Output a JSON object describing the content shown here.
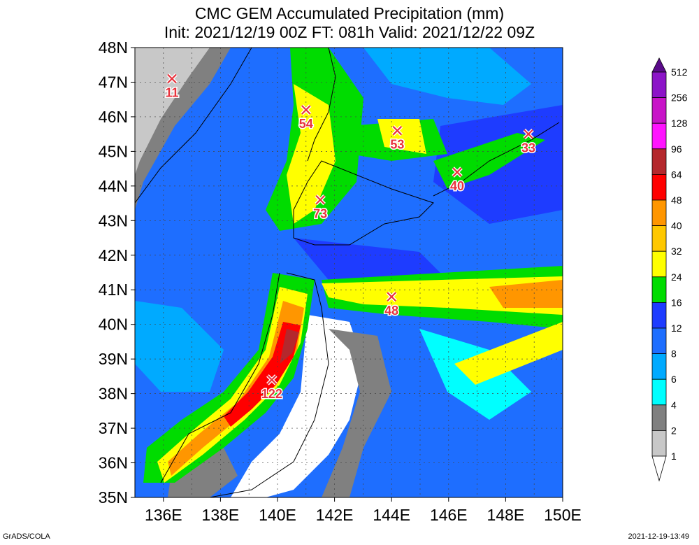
{
  "title": {
    "line1": "CMC GEM Accumulated Precipitation (mm)",
    "line2": "Init: 2021/12/19 00Z  FT: 081h  Valid: 2021/12/22 09Z"
  },
  "axes": {
    "lat_labels": [
      "48N",
      "47N",
      "46N",
      "45N",
      "44N",
      "43N",
      "42N",
      "41N",
      "40N",
      "39N",
      "38N",
      "37N",
      "36N",
      "35N"
    ],
    "lon_labels": [
      "136E",
      "138E",
      "140E",
      "142E",
      "144E",
      "146E",
      "148E",
      "150E"
    ]
  },
  "colorbar": {
    "levels": [
      "512",
      "256",
      "128",
      "96",
      "64",
      "48",
      "40",
      "32",
      "24",
      "16",
      "12",
      "8",
      "6",
      "4",
      "2",
      "1"
    ],
    "colors": [
      "#5a0a8a",
      "#8c14c8",
      "#c814c8",
      "#ff14ff",
      "#b4282d",
      "#ff0000",
      "#ff9600",
      "#ffc800",
      "#ffff00",
      "#00dc00",
      "#1e3cff",
      "#1e6eff",
      "#00aaff",
      "#00ffff",
      "#808080",
      "#c8c8c8",
      "#ffffff"
    ]
  },
  "map": {
    "base_color": "#1e6eff",
    "lat_range": [
      35,
      48
    ],
    "lon_range": [
      135,
      150
    ]
  },
  "markers": [
    {
      "label": "11",
      "lon": 136.3,
      "lat": 47.1
    },
    {
      "label": "54",
      "lon": 141.0,
      "lat": 46.2
    },
    {
      "label": "53",
      "lon": 144.2,
      "lat": 45.6
    },
    {
      "label": "33",
      "lon": 148.8,
      "lat": 45.5
    },
    {
      "label": "40",
      "lon": 146.3,
      "lat": 44.4
    },
    {
      "label": "73",
      "lon": 141.5,
      "lat": 43.6
    },
    {
      "label": "48",
      "lon": 144.0,
      "lat": 40.8
    },
    {
      "label": "122",
      "lon": 139.8,
      "lat": 38.4
    }
  ],
  "footer": {
    "left": "GrADS/COLA",
    "right": "2021-12-19-13:49"
  }
}
